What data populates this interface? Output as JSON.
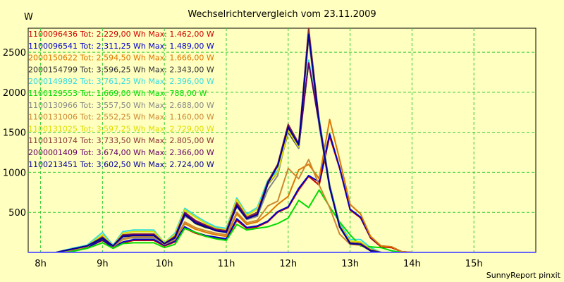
{
  "chart_data": {
    "type": "line",
    "title": "Wechselrichtervergleich vom 23.11.2009",
    "ylabel": "W",
    "footer": "SunnyReport pinxit",
    "xlim": [
      7.8,
      16.0
    ],
    "ylim": [
      0,
      2800
    ],
    "grid": true,
    "legend_position": "top-left",
    "x_ticks": [
      8,
      9,
      10,
      11,
      12,
      13,
      14,
      15
    ],
    "x_tick_labels": [
      "8h",
      "9h",
      "10h",
      "11h",
      "12h",
      "13h",
      "14h",
      "15h"
    ],
    "y_ticks": [
      500,
      1000,
      1500,
      2000,
      2500
    ],
    "y_tick_labels": [
      "500",
      "1000",
      "1500",
      "2000",
      "2500"
    ],
    "x": [
      7.8,
      8.0,
      8.25,
      8.5,
      8.75,
      9.0,
      9.17,
      9.33,
      9.5,
      9.67,
      9.83,
      10.0,
      10.17,
      10.33,
      10.5,
      10.67,
      10.83,
      11.0,
      11.17,
      11.33,
      11.5,
      11.67,
      11.83,
      12.0,
      12.17,
      12.33,
      12.5,
      12.67,
      12.83,
      13.0,
      13.17,
      13.33,
      13.5,
      13.67,
      13.83,
      14.0,
      14.17,
      14.33,
      14.5,
      14.67,
      14.83,
      15.0,
      15.17,
      15.33,
      15.5,
      15.67,
      15.83,
      16.0
    ],
    "series": [
      {
        "name": "1100096436",
        "legend": "1100096436 Tot: 2.229,00 Wh Max: 1.462,00 W",
        "color": "#cc0000",
        "values": [
          0,
          0,
          0,
          20,
          60,
          150,
          60,
          120,
          150,
          150,
          150,
          80,
          130,
          300,
          240,
          200,
          180,
          160,
          400,
          300,
          320,
          380,
          500,
          560,
          780,
          950,
          840,
          1450,
          1050,
          530,
          430,
          180,
          70,
          60,
          10,
          0,
          0,
          0,
          0,
          0,
          0,
          0,
          0,
          0,
          0,
          0,
          0,
          0
        ]
      },
      {
        "name": "1100096541",
        "legend": "1100096541 Tot: 2.311,25 Wh Max: 1.489,00 W",
        "color": "#0000cc",
        "values": [
          0,
          0,
          0,
          20,
          60,
          160,
          60,
          130,
          160,
          160,
          160,
          90,
          140,
          320,
          250,
          210,
          190,
          170,
          420,
          310,
          330,
          390,
          510,
          570,
          800,
          960,
          880,
          1480,
          1060,
          540,
          440,
          190,
          80,
          70,
          10,
          0,
          0,
          0,
          0,
          0,
          0,
          0,
          0,
          0,
          0,
          0,
          0,
          0
        ]
      },
      {
        "name": "2000150622",
        "legend": "2000150622 Tot: 2.594,50 Wh Max: 1.666,00 W",
        "color": "#dd7700",
        "values": [
          0,
          0,
          0,
          30,
          70,
          200,
          70,
          160,
          190,
          190,
          190,
          100,
          160,
          360,
          290,
          250,
          220,
          200,
          480,
          350,
          380,
          480,
          600,
          700,
          1030,
          1100,
          920,
          1660,
          1160,
          600,
          480,
          200,
          80,
          70,
          10,
          0,
          0,
          0,
          0,
          0,
          0,
          0,
          0,
          0,
          0,
          0,
          0,
          0
        ]
      },
      {
        "name": "2000154799",
        "legend": "2000154799 Tot: 3.596,25 Wh Max: 2.343,00 W",
        "color": "#333333",
        "values": [
          0,
          0,
          0,
          40,
          80,
          170,
          80,
          200,
          200,
          200,
          200,
          110,
          190,
          480,
          360,
          310,
          280,
          260,
          580,
          430,
          450,
          850,
          1000,
          1500,
          1300,
          2380,
          1600,
          820,
          320,
          110,
          100,
          20,
          0,
          0,
          0,
          0,
          0,
          0,
          0,
          0,
          0,
          0,
          0,
          0,
          0,
          0,
          0,
          0
        ]
      },
      {
        "name": "2000149892",
        "legend": "2000149892 Tot: 3.761,25 Wh Max: 2.396,00 W",
        "color": "#33dddd",
        "values": [
          0,
          0,
          0,
          50,
          90,
          250,
          90,
          260,
          280,
          280,
          280,
          120,
          240,
          550,
          460,
          380,
          320,
          300,
          680,
          480,
          560,
          900,
          1020,
          1550,
          1340,
          2400,
          1680,
          850,
          360,
          160,
          160,
          60,
          0,
          0,
          0,
          0,
          0,
          0,
          0,
          0,
          0,
          0,
          0,
          0,
          0,
          0,
          0,
          0
        ]
      },
      {
        "name": "1100129553",
        "legend": "1100129553 Tot: 1.669,00 Wh Max: 788,00 W",
        "color": "#00dd00",
        "values": [
          0,
          0,
          0,
          10,
          50,
          120,
          50,
          110,
          120,
          120,
          120,
          60,
          100,
          300,
          250,
          200,
          170,
          150,
          350,
          280,
          300,
          320,
          360,
          430,
          650,
          560,
          780,
          570,
          380,
          220,
          80,
          70,
          60,
          20,
          0,
          0,
          0,
          0,
          0,
          0,
          0,
          0,
          0,
          0,
          0,
          0,
          0,
          0
        ]
      },
      {
        "name": "1100130966",
        "legend": "1100130966 Tot: 3.557,50 Wh Max: 2.688,00 W",
        "color": "#888888",
        "values": [
          0,
          0,
          0,
          40,
          80,
          200,
          80,
          180,
          180,
          180,
          180,
          110,
          180,
          450,
          380,
          320,
          280,
          260,
          570,
          410,
          450,
          780,
          960,
          1530,
          1300,
          2680,
          1580,
          800,
          330,
          120,
          110,
          30,
          0,
          0,
          0,
          0,
          0,
          0,
          0,
          0,
          0,
          0,
          0,
          0,
          0,
          0,
          0,
          0
        ]
      },
      {
        "name": "1100131006",
        "legend": "1100131006 Tot: 2.552,25 Wh Max: 1.160,00 W",
        "color": "#cc8833",
        "values": [
          0,
          0,
          0,
          30,
          70,
          200,
          70,
          160,
          200,
          200,
          200,
          100,
          160,
          380,
          310,
          270,
          240,
          220,
          500,
          370,
          400,
          580,
          640,
          1050,
          920,
          1160,
          840,
          560,
          230,
          100,
          90,
          20,
          0,
          0,
          0,
          0,
          0,
          0,
          0,
          0,
          0,
          0,
          0,
          0,
          0,
          0,
          0,
          0
        ]
      },
      {
        "name": "1100131025",
        "legend": "1100131025 Tot: 3.597,25 Wh Max: 2.729,00 W",
        "color": "#dddd00",
        "values": [
          0,
          0,
          0,
          40,
          80,
          220,
          80,
          240,
          260,
          260,
          260,
          120,
          220,
          530,
          440,
          360,
          300,
          280,
          660,
          460,
          540,
          860,
          1000,
          1520,
          1320,
          2729,
          1640,
          830,
          340,
          140,
          130,
          40,
          0,
          0,
          0,
          0,
          0,
          0,
          0,
          0,
          0,
          0,
          0,
          0,
          0,
          0,
          0,
          0
        ]
      },
      {
        "name": "1100131074",
        "legend": "1100131074 Tot: 3.733,50 Wh Max: 2.805,00 W",
        "color": "#883333",
        "values": [
          0,
          0,
          0,
          40,
          80,
          190,
          80,
          220,
          230,
          230,
          230,
          110,
          200,
          500,
          400,
          340,
          290,
          270,
          620,
          440,
          500,
          880,
          1100,
          1600,
          1360,
          2805,
          1650,
          830,
          330,
          120,
          110,
          30,
          0,
          0,
          0,
          0,
          0,
          0,
          0,
          0,
          0,
          0,
          0,
          0,
          0,
          0,
          0,
          0
        ]
      },
      {
        "name": "2000001409",
        "legend": "2000001409 Tot: 3.674,00 Wh Max: 2.366,00 W",
        "color": "#660066",
        "values": [
          0,
          0,
          0,
          40,
          80,
          180,
          80,
          210,
          220,
          220,
          220,
          110,
          190,
          490,
          390,
          330,
          280,
          260,
          600,
          430,
          480,
          870,
          1090,
          1580,
          1350,
          2366,
          1630,
          820,
          320,
          110,
          100,
          20,
          0,
          0,
          0,
          0,
          0,
          0,
          0,
          0,
          0,
          0,
          0,
          0,
          0,
          0,
          0,
          0
        ]
      },
      {
        "name": "1100213451",
        "legend": "1100213451 Tot: 3.602,50 Wh Max: 2.724,00 W",
        "color": "#000099",
        "values": [
          0,
          0,
          0,
          40,
          80,
          180,
          80,
          200,
          210,
          210,
          210,
          110,
          180,
          470,
          370,
          320,
          270,
          250,
          580,
          420,
          470,
          860,
          1080,
          1560,
          1340,
          2724,
          1620,
          810,
          320,
          110,
          100,
          20,
          0,
          0,
          0,
          0,
          0,
          0,
          0,
          0,
          0,
          0,
          0,
          0,
          0,
          0,
          0,
          0
        ]
      }
    ]
  }
}
